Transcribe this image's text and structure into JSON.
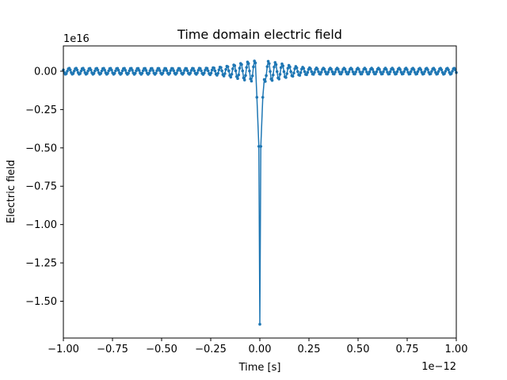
{
  "chart_data": {
    "type": "line",
    "title": "Time domain electric field",
    "xlabel": "Time [s]",
    "ylabel": "Electric field",
    "x_offset_label": "1e−12",
    "y_offset_label": "1e16",
    "x_scale": 1e-12,
    "y_scale": 1e+16,
    "xlim": [
      -1e-12,
      1e-12
    ],
    "ylim": [
      -1.74e+16,
      1650000000000000.0
    ],
    "x_ticks": [
      -1.0,
      -0.75,
      -0.5,
      -0.25,
      0.0,
      0.25,
      0.5,
      0.75,
      1.0
    ],
    "x_tick_labels": [
      "−1.00",
      "−0.75",
      "−0.50",
      "−0.25",
      "0.00",
      "0.25",
      "0.50",
      "0.75",
      "1.00"
    ],
    "y_ticks": [
      0.0,
      -0.25,
      -0.5,
      -0.75,
      -1.0,
      -1.25,
      -1.5
    ],
    "y_tick_labels": [
      "0.00",
      "−0.25",
      "−0.50",
      "−0.75",
      "−1.00",
      "−1.25",
      "−1.50"
    ],
    "grid": false,
    "series_color": "#1f77b4",
    "series": [
      {
        "marker": "dot",
        "signal": {
          "n_points": 400,
          "spike_min": -1.65e+16,
          "carrier_period_s": 3.5e-14,
          "far_amplitude": 200000000000000.0,
          "near_amplitude": 700000000000000.0,
          "near_width_s": 1.5e-13,
          "notch_points": [
            {
              "x": -1.5e-14,
              "y": -1700000000000000.0
            },
            {
              "x": -5e-15,
              "y": -4900000000000000.0
            },
            {
              "x": 0.0,
              "y": -1.65e+16
            },
            {
              "x": 5e-15,
              "y": -4900000000000000.0
            },
            {
              "x": 1.5e-14,
              "y": -1700000000000000.0
            }
          ]
        }
      }
    ]
  }
}
